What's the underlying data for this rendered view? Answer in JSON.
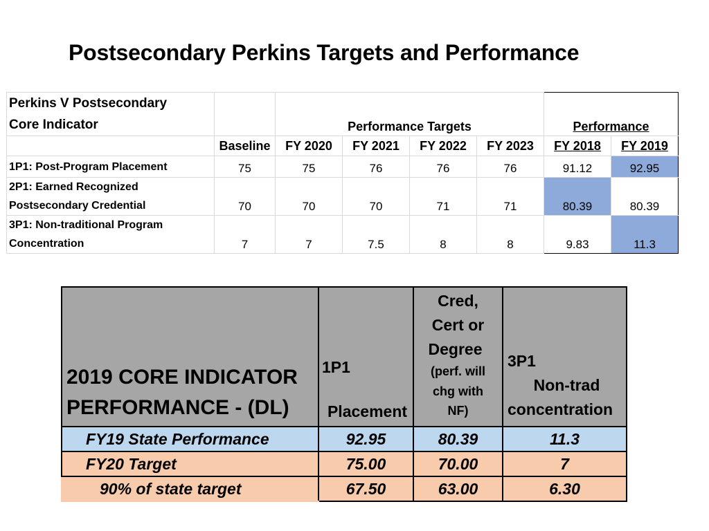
{
  "title": "Postsecondary Perkins Targets and Performance",
  "table1": {
    "indicator_header_line1": "Perkins V Postsecondary",
    "indicator_header_line2": "Core Indicator",
    "targets_group": "Performance  Targets",
    "performance_group": "Performance",
    "columns": [
      "Baseline",
      "FY 2020",
      "FY 2021",
      "FY 2022",
      "FY 2023",
      "FY 2018",
      "FY 2019"
    ],
    "rows": [
      {
        "label": [
          "1P1: Post-Program Placement"
        ],
        "values": [
          "75",
          "75",
          "76",
          "76",
          "76",
          "91.12",
          "92.95"
        ]
      },
      {
        "label": [
          "2P1: Earned Recognized",
          "Postsecondary Credential"
        ],
        "values": [
          "70",
          "70",
          "70",
          "71",
          "71",
          "80.39",
          "80.39"
        ]
      },
      {
        "label": [
          "3P1: Non-traditional Program",
          "Concentration"
        ],
        "values": [
          "7",
          "7",
          "7.5",
          "8",
          "8",
          "9.83",
          "11.3"
        ]
      }
    ]
  },
  "table2": {
    "title_line1": "2019 CORE INDICATOR",
    "title_line2": "PERFORMANCE - (DL)",
    "col1_line1": "1P1",
    "col1_line2": "Placement",
    "col2_line1": "Cred,",
    "col2_line2": "Cert or",
    "col2_line3": "Degree",
    "col2_line4": "(perf. will",
    "col2_line5": "chg with",
    "col2_line6": "NF)",
    "col3_line1": "3P1",
    "col3_line2": "Non-trad",
    "col3_line3": "concentration",
    "rows": [
      {
        "label": "FY19  State Performance",
        "values": [
          "92.95",
          "80.39",
          "11.3"
        ]
      },
      {
        "label": "FY20 Target",
        "values": [
          "75.00",
          "70.00",
          "7"
        ]
      },
      {
        "label": "90% of state target",
        "values": [
          "67.50",
          "63.00",
          "6.30"
        ]
      }
    ]
  },
  "colors": {
    "highlight_blue": "#8eaadb",
    "header_gray": "#a6a6a6",
    "row_light_blue": "#bdd7ee",
    "row_peach": "#f8cbad"
  }
}
